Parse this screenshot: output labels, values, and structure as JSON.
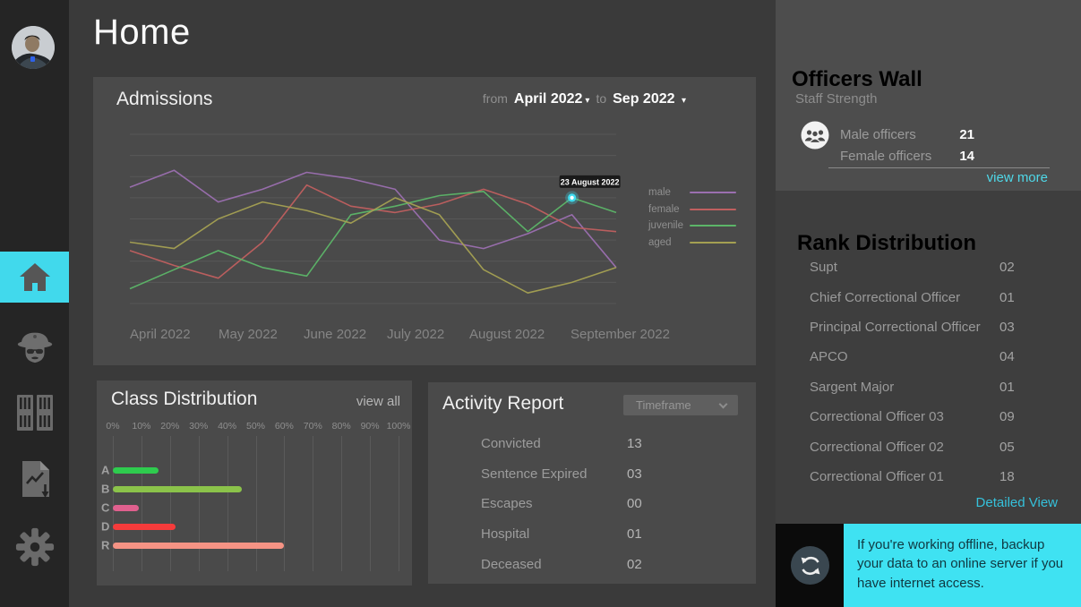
{
  "page_title": "Home",
  "colors": {
    "accent_cyan": "#41d9ec",
    "link_cyan": "#4fd8e8",
    "link_cyan_dark": "#35c1db",
    "panel_bg": "#4a4a4a",
    "sidebar_bg": "#252525",
    "main_bg": "#3a3a3a",
    "right_bg": "#3e3e3e",
    "officers_panel_bg": "#4d4d4d",
    "notification_bg": "#3fe2f2"
  },
  "sidebar": {
    "items": [
      "avatar",
      "home",
      "officers",
      "prison-cells",
      "reports",
      "settings"
    ],
    "active_item": "home"
  },
  "admissions": {
    "title": "Admissions",
    "from_label": "from",
    "from_value": "April 2022",
    "to_label": "to",
    "to_value": "Sep 2022",
    "dropdown_arrow": "▾"
  },
  "chart_data": [
    {
      "type": "line",
      "title": "Admissions",
      "x_labels": [
        "April 2022",
        "May 2022",
        "June 2022",
        "July 2022",
        "August 2022",
        "September 2022"
      ],
      "ylim": [
        0,
        80
      ],
      "gridlines": 9,
      "legend_position": "right",
      "series": [
        {
          "name": "male",
          "color": "#9b6fb0",
          "values": [
            55,
            63,
            48,
            54,
            62,
            59,
            54,
            30,
            26,
            33,
            42,
            17
          ]
        },
        {
          "name": "female",
          "color": "#c05f5f",
          "values": [
            25,
            18,
            12,
            29,
            56,
            46,
            43,
            47,
            54,
            47,
            36,
            34
          ]
        },
        {
          "name": "juvenile",
          "color": "#5cb568",
          "values": [
            7,
            16,
            25,
            17,
            13,
            42,
            46,
            51,
            53,
            34,
            50,
            43
          ]
        },
        {
          "name": "aged",
          "color": "#a4a052",
          "values": [
            29,
            26,
            40,
            48,
            44,
            38,
            50,
            42,
            16,
            5,
            10,
            17
          ]
        }
      ],
      "highlight": {
        "series": "juvenile",
        "point_index": 10,
        "label": "23 August 2022",
        "dot_color": "#3fdcef"
      }
    },
    {
      "type": "bar",
      "title": "Class Distribution",
      "orientation": "horizontal",
      "categories": [
        "A",
        "B",
        "C",
        "D",
        "R"
      ],
      "values": [
        16,
        45,
        9,
        22,
        60
      ],
      "bar_colors": [
        "#2ecc4e",
        "#8bc34a",
        "#e0608e",
        "#f53b3b",
        "#f59384"
      ],
      "x_ticks": [
        "0%",
        "10%",
        "20%",
        "30%",
        "40%",
        "50%",
        "60%",
        "70%",
        "80%",
        "90%",
        "100%"
      ],
      "xlim": [
        0,
        100
      ]
    }
  ],
  "class_distribution": {
    "title": "Class Distribution",
    "view_all_label": "view all"
  },
  "activity_report": {
    "title": "Activity Report",
    "timeframe_label": "Timeframe",
    "rows": [
      {
        "label": "Convicted",
        "value": "13"
      },
      {
        "label": "Sentence Expired",
        "value": "03"
      },
      {
        "label": "Escapes",
        "value": "00"
      },
      {
        "label": "Hospital",
        "value": "01"
      },
      {
        "label": "Deceased",
        "value": "02"
      }
    ]
  },
  "officers_wall": {
    "title": "Officers Wall",
    "subtitle": "Staff Strength",
    "rows": [
      {
        "label": "Male officers",
        "value": "21"
      },
      {
        "label": "Female officers",
        "value": "14"
      }
    ],
    "view_more_label": "view more"
  },
  "rank_distribution": {
    "title": "Rank Distribution",
    "rows": [
      {
        "label": "Supt",
        "value": "02"
      },
      {
        "label": "Chief Correctional Officer",
        "value": "01"
      },
      {
        "label": "Principal Correctional Officer",
        "value": "03"
      },
      {
        "label": "APCO",
        "value": "04"
      },
      {
        "label": "Sargent Major",
        "value": "01"
      },
      {
        "label": "Correctional Officer 03",
        "value": "09"
      },
      {
        "label": "Correctional Officer 02",
        "value": "05"
      },
      {
        "label": "Correctional Officer 01",
        "value": "18"
      }
    ],
    "detailed_view_label": "Detailed View"
  },
  "notification": {
    "text": "If you're working offline, backup your data to an online server if you have internet access."
  }
}
